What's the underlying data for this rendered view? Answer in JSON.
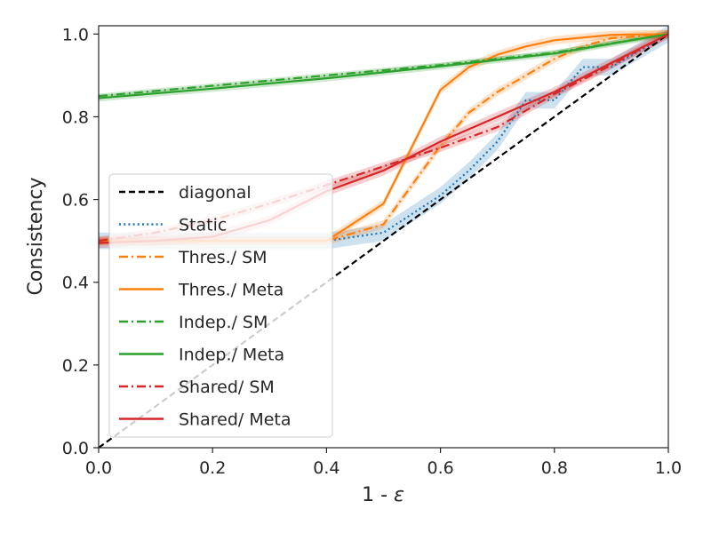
{
  "chart_data": {
    "type": "line",
    "title": "",
    "xlabel": "1 - ",
    "xlabel_symbol": "ε",
    "ylabel": "Consistency",
    "xlim": [
      0.0,
      1.0
    ],
    "ylim": [
      0.0,
      1.02
    ],
    "xticks": [
      "0.0",
      "0.2",
      "0.4",
      "0.6",
      "0.8",
      "1.0"
    ],
    "yticks": [
      "0.0",
      "0.2",
      "0.4",
      "0.6",
      "0.8",
      "1.0"
    ],
    "grid": false,
    "legend_position": "center-left",
    "series": [
      {
        "name": "diagonal",
        "color": "#000000",
        "style": "dashed",
        "x": [
          0.0,
          1.0
        ],
        "y": [
          0.0,
          1.0
        ]
      },
      {
        "name": "Static",
        "color": "#1f77b4",
        "style": "dotted",
        "x": [
          0.0,
          0.4,
          0.5,
          0.6,
          0.65,
          0.7,
          0.75,
          0.8,
          0.85,
          0.9,
          1.0
        ],
        "y": [
          0.5,
          0.5,
          0.52,
          0.61,
          0.67,
          0.74,
          0.84,
          0.84,
          0.92,
          0.92,
          1.0
        ],
        "band": 0.02
      },
      {
        "name": "Thres./ SM",
        "color": "#ff7f0e",
        "style": "dashdot",
        "x": [
          0.0,
          0.4,
          0.5,
          0.6,
          0.65,
          0.7,
          0.75,
          0.8,
          0.85,
          0.9,
          1.0
        ],
        "y": [
          0.5,
          0.5,
          0.54,
          0.73,
          0.81,
          0.86,
          0.9,
          0.94,
          0.97,
          0.99,
          1.0
        ],
        "band": 0.01
      },
      {
        "name": "Thres./ Meta",
        "color": "#ff7f0e",
        "style": "solid",
        "x": [
          0.0,
          0.4,
          0.5,
          0.6,
          0.65,
          0.7,
          0.75,
          0.8,
          0.9,
          1.0
        ],
        "y": [
          0.5,
          0.5,
          0.59,
          0.865,
          0.92,
          0.95,
          0.97,
          0.985,
          0.998,
          1.0
        ],
        "band": 0.01
      },
      {
        "name": "Indep./ SM",
        "color": "#2ca02c",
        "style": "dashdot",
        "x": [
          0.0,
          0.2,
          0.4,
          0.6,
          0.8,
          1.0
        ],
        "y": [
          0.85,
          0.875,
          0.9,
          0.925,
          0.955,
          1.0
        ],
        "band": 0.006
      },
      {
        "name": "Indep./ Meta",
        "color": "#2ca02c",
        "style": "solid",
        "x": [
          0.0,
          0.2,
          0.4,
          0.6,
          0.8,
          1.0
        ],
        "y": [
          0.845,
          0.868,
          0.893,
          0.922,
          0.953,
          1.0
        ],
        "band": 0.008
      },
      {
        "name": "Shared/ SM",
        "color": "#d62728",
        "style": "dashdot",
        "x": [
          0.0,
          0.1,
          0.2,
          0.3,
          0.4,
          0.5,
          0.6,
          0.7,
          0.8,
          0.9,
          1.0
        ],
        "y": [
          0.5,
          0.52,
          0.55,
          0.59,
          0.635,
          0.68,
          0.725,
          0.775,
          0.855,
          0.925,
          1.0
        ],
        "band": 0.01
      },
      {
        "name": "Shared/ Meta",
        "color": "#d62728",
        "style": "solid",
        "x": [
          0.0,
          0.1,
          0.2,
          0.3,
          0.4,
          0.5,
          0.6,
          0.7,
          0.8,
          0.9,
          1.0
        ],
        "y": [
          0.495,
          0.5,
          0.51,
          0.55,
          0.62,
          0.67,
          0.74,
          0.8,
          0.86,
          0.93,
          1.0
        ],
        "band": 0.012
      }
    ]
  }
}
